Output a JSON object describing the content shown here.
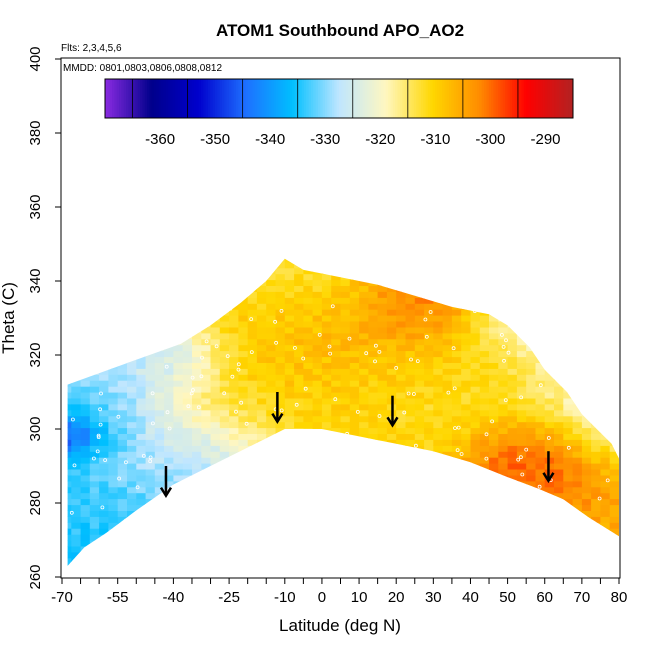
{
  "chart_data": {
    "type": "heatmap",
    "title": "ATOM1 Southbound APO_AO2",
    "subtitle_flights": "Flts: 2,3,4,5,6",
    "subtitle_dates": "MMDD: 0801,0803,0806,0808,0812",
    "xlabel": "Latitude (deg N)",
    "ylabel": "Theta (C)",
    "xlim": [
      -70,
      80
    ],
    "ylim": [
      260,
      400
    ],
    "x_ticks": [
      "-70",
      "-55",
      "-40",
      "-25",
      "-10",
      "0",
      "10",
      "20",
      "30",
      "40",
      "50",
      "60",
      "70",
      "80"
    ],
    "y_ticks": [
      "260",
      "280",
      "300",
      "320",
      "340",
      "360",
      "380",
      "400"
    ],
    "colorbar": {
      "range": [
        -370,
        -285
      ],
      "tick_labels": [
        "-360",
        "-350",
        "-340",
        "-330",
        "-320",
        "-310",
        "-300",
        "-290"
      ],
      "colors": [
        "#8a2be2",
        "#00008b",
        "#0000cd",
        "#1e6fff",
        "#00bfff",
        "#bfe6ff",
        "#fff7c0",
        "#ffd700",
        "#ff8c00",
        "#ff0000",
        "#b22222"
      ]
    },
    "domain_outline": [
      [
        -68.5,
        263
      ],
      [
        -68.5,
        312
      ],
      [
        -52,
        318
      ],
      [
        -38,
        323
      ],
      [
        -30,
        328
      ],
      [
        -22,
        334
      ],
      [
        -15,
        340
      ],
      [
        -10,
        346
      ],
      [
        -5,
        343
      ],
      [
        5,
        341
      ],
      [
        15,
        339
      ],
      [
        25,
        336
      ],
      [
        35,
        333
      ],
      [
        45,
        331
      ],
      [
        50,
        328
      ],
      [
        56,
        322
      ],
      [
        60,
        316
      ],
      [
        66,
        310
      ],
      [
        70,
        304
      ],
      [
        74,
        300
      ],
      [
        78,
        296
      ],
      [
        80,
        292
      ],
      [
        80,
        271
      ],
      [
        72,
        276
      ],
      [
        65,
        281
      ],
      [
        58,
        284
      ],
      [
        50,
        287
      ],
      [
        40,
        291
      ],
      [
        30,
        294
      ],
      [
        20,
        296
      ],
      [
        10,
        298
      ],
      [
        0,
        300
      ],
      [
        -10,
        300
      ],
      [
        -20,
        295
      ],
      [
        -30,
        290
      ],
      [
        -40,
        285
      ],
      [
        -50,
        278
      ],
      [
        -58,
        272
      ],
      [
        -64,
        268
      ],
      [
        -68.5,
        263
      ]
    ],
    "field_blobs": [
      {
        "lat": -68,
        "theta": 298,
        "value": -360,
        "spread": 3
      },
      {
        "lat": -62,
        "theta": 300,
        "value": -345,
        "spread": 6
      },
      {
        "lat": -60,
        "theta": 285,
        "value": -335,
        "spread": 10
      },
      {
        "lat": -45,
        "theta": 298,
        "value": -325,
        "spread": 10
      },
      {
        "lat": -35,
        "theta": 310,
        "value": -318,
        "spread": 12
      },
      {
        "lat": -30,
        "theta": 292,
        "value": -330,
        "spread": 8
      },
      {
        "lat": -20,
        "theta": 320,
        "value": -305,
        "spread": 10
      },
      {
        "lat": -18,
        "theta": 305,
        "value": -308,
        "spread": 8
      },
      {
        "lat": -10,
        "theta": 335,
        "value": -315,
        "spread": 8
      },
      {
        "lat": -5,
        "theta": 325,
        "value": -306,
        "spread": 10
      },
      {
        "lat": 5,
        "theta": 310,
        "value": -312,
        "spread": 10
      },
      {
        "lat": 15,
        "theta": 318,
        "value": -303,
        "spread": 10
      },
      {
        "lat": 20,
        "theta": 305,
        "value": -310,
        "spread": 10
      },
      {
        "lat": 25,
        "theta": 330,
        "value": -298,
        "spread": 6
      },
      {
        "lat": 32,
        "theta": 313,
        "value": -318,
        "spread": 10
      },
      {
        "lat": 42,
        "theta": 320,
        "value": -305,
        "spread": 8
      },
      {
        "lat": 50,
        "theta": 315,
        "value": -310,
        "spread": 8
      },
      {
        "lat": 55,
        "theta": 325,
        "value": -330,
        "spread": 6
      },
      {
        "lat": 60,
        "theta": 292,
        "value": -293,
        "spread": 6
      },
      {
        "lat": 58,
        "theta": 297,
        "value": -300,
        "spread": 8
      },
      {
        "lat": 70,
        "theta": 292,
        "value": -306,
        "spread": 8
      },
      {
        "lat": 68,
        "theta": 310,
        "value": -325,
        "spread": 8
      },
      {
        "lat": 76,
        "theta": 300,
        "value": -330,
        "spread": 6
      },
      {
        "lat": -55,
        "theta": 310,
        "value": -335,
        "spread": 6
      },
      {
        "lat": -40,
        "theta": 320,
        "value": -338,
        "spread": 6
      }
    ],
    "arrows": [
      {
        "lat": -42,
        "theta": 284
      },
      {
        "lat": -12,
        "theta": 304
      },
      {
        "lat": 19,
        "theta": 303
      },
      {
        "lat": 61,
        "theta": 288
      }
    ],
    "grid": false,
    "legend_placement": "top"
  }
}
